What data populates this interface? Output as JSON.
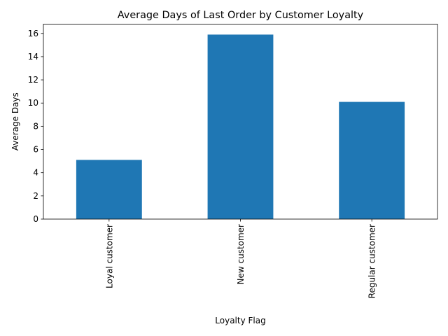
{
  "chart_data": {
    "type": "bar",
    "title": "Average Days of Last Order by Customer Loyalty",
    "xlabel": "Loyalty Flag",
    "ylabel": "Average Days",
    "categories": [
      "Loyal customer",
      "New customer",
      "Regular customer"
    ],
    "values": [
      5.1,
      15.9,
      10.1
    ],
    "ylim": [
      0,
      16.8
    ],
    "yticks": [
      "0",
      "2",
      "4",
      "6",
      "8",
      "10",
      "12",
      "14",
      "16"
    ],
    "bar_color": "#1f77b4",
    "grid": false,
    "legend": "none"
  }
}
